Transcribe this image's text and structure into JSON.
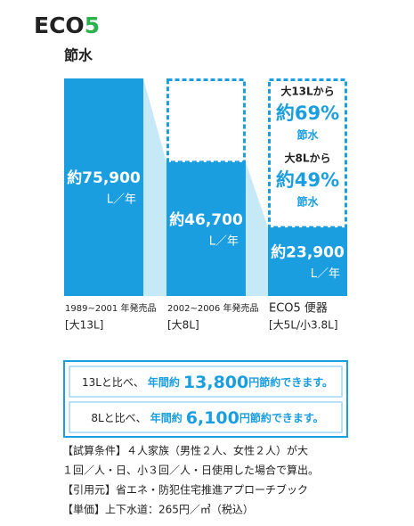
{
  "chart_data": {
    "type": "bar",
    "brand": "ECO",
    "brand_accent": "5",
    "title": "節水",
    "categories": [
      "1989~2001 年発売品",
      "2002~2006 年発売品",
      "ECO5 便器"
    ],
    "sublabels": [
      "[大13L]",
      "[大8L]",
      "[大5L/小3.8L]"
    ],
    "values": [
      75900,
      46700,
      23900
    ],
    "value_labels": [
      "約75,900",
      "約46,700",
      "約23,900"
    ],
    "unit": "L／年",
    "color": "#1a9ee0",
    "savings": [
      {
        "from": "大13Lから",
        "value": 69,
        "value_label": "約69%",
        "label": "節水"
      },
      {
        "from": "大8Lから",
        "value": 49,
        "value_label": "約49%",
        "label": "節水"
      }
    ],
    "yearly": [
      {
        "prefix": "13Lと比べ、",
        "emph": "年間約",
        "amount": "13,800",
        "suffix": "円節約できます。"
      },
      {
        "prefix": "8Lと比べ、",
        "emph": "年間約",
        "amount": "6,100",
        "suffix": "円節約できます。"
      }
    ],
    "notes": [
      "【試算条件】４人家族（男性２人、女性２人）が大",
      "１回／人・日、小３回／人・日使用した場合で算出。",
      "【引用元】省エネ・防犯住宅推進アプローチブック",
      "【単価】上下水道：265円／㎥（税込）"
    ]
  }
}
